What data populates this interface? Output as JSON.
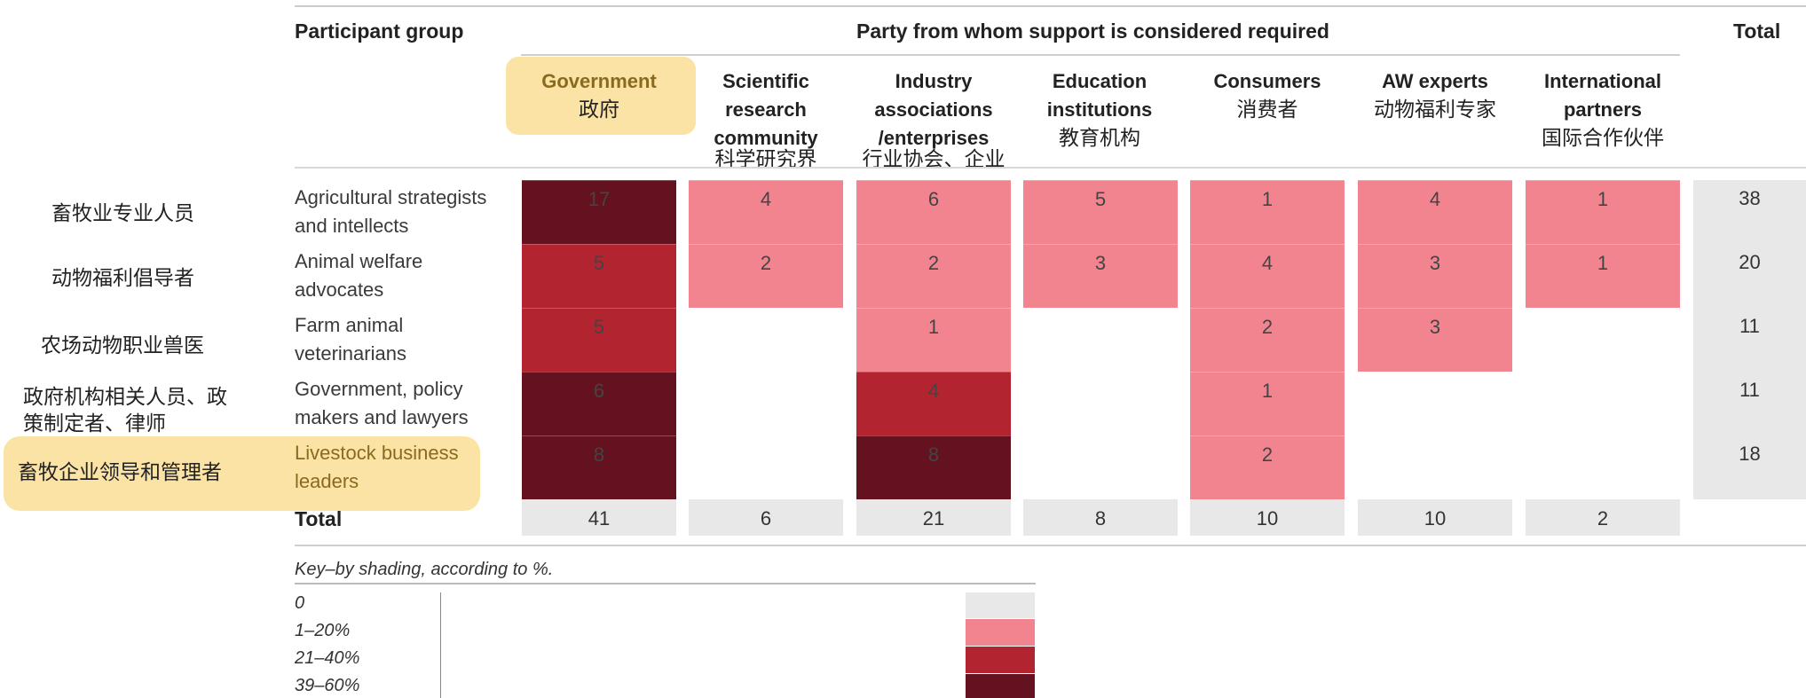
{
  "header": {
    "participant_group": "Participant group",
    "party": "Party from whom support is considered required",
    "total": "Total"
  },
  "columns": [
    {
      "en": "Government",
      "zh": "政府"
    },
    {
      "en": "Scientific research community",
      "zh": "科学研究界"
    },
    {
      "en": "Industry associations /enterprises",
      "zh": "行业协会、企业"
    },
    {
      "en": "Education institutions",
      "zh": "教育机构"
    },
    {
      "en": "Consumers",
      "zh": "消费者"
    },
    {
      "en": "AW experts",
      "zh": "动物福利专家"
    },
    {
      "en": "International partners",
      "zh": "国际合作伙伴"
    }
  ],
  "rows": [
    {
      "en": "Agricultural strategists and intellects",
      "zh": "畜牧业专业人员",
      "total": "38"
    },
    {
      "en": "Animal welfare advocates",
      "zh": "动物福利倡导者",
      "total": "20"
    },
    {
      "en": "Farm animal veterinarians",
      "zh": "农场动物职业兽医",
      "total": "11"
    },
    {
      "en": "Government, policy makers and lawyers",
      "zh": "政府机构相关人员、政策制定者、律师",
      "total": "11"
    },
    {
      "en": "Livestock business leaders",
      "zh": "畜牧企业领导和管理者",
      "total": "18"
    }
  ],
  "total_row": {
    "label": "Total",
    "values": [
      "41",
      "6",
      "21",
      "8",
      "10",
      "10",
      "2"
    ]
  },
  "colors": {
    "shade_0": "#e8e8e8",
    "shade_1_20": "#f28490",
    "shade_21_40": "#b32431",
    "shade_39_60": "#64121f",
    "highlight": "#fbe3a6"
  },
  "legend": {
    "title": "Key–by shading, according to %.",
    "items": [
      "0",
      "1–20%",
      "21–40%",
      "39–60%"
    ]
  },
  "chart_data": {
    "type": "heatmap",
    "title": "",
    "x_categories": [
      "Government",
      "Scientific research community",
      "Industry associations /enterprises",
      "Education institutions",
      "Consumers",
      "AW experts",
      "International partners"
    ],
    "y_categories": [
      "Agricultural strategists and intellects",
      "Animal welfare advocates",
      "Farm animal veterinarians",
      "Government, policy makers and lawyers",
      "Livestock business leaders"
    ],
    "values": [
      [
        17,
        4,
        6,
        5,
        1,
        4,
        1
      ],
      [
        5,
        2,
        2,
        3,
        4,
        3,
        1
      ],
      [
        5,
        null,
        1,
        null,
        2,
        3,
        null
      ],
      [
        6,
        null,
        4,
        null,
        1,
        null,
        null
      ],
      [
        8,
        null,
        8,
        null,
        2,
        null,
        null
      ]
    ],
    "shades": [
      [
        3,
        1,
        1,
        1,
        1,
        1,
        1
      ],
      [
        2,
        1,
        1,
        1,
        1,
        1,
        1
      ],
      [
        2,
        0,
        1,
        0,
        1,
        1,
        0
      ],
      [
        3,
        0,
        2,
        0,
        1,
        0,
        0
      ],
      [
        3,
        0,
        3,
        0,
        1,
        0,
        0
      ]
    ],
    "row_totals": [
      38,
      20,
      11,
      11,
      18
    ],
    "column_totals": [
      41,
      6,
      21,
      8,
      10,
      10,
      2
    ]
  }
}
